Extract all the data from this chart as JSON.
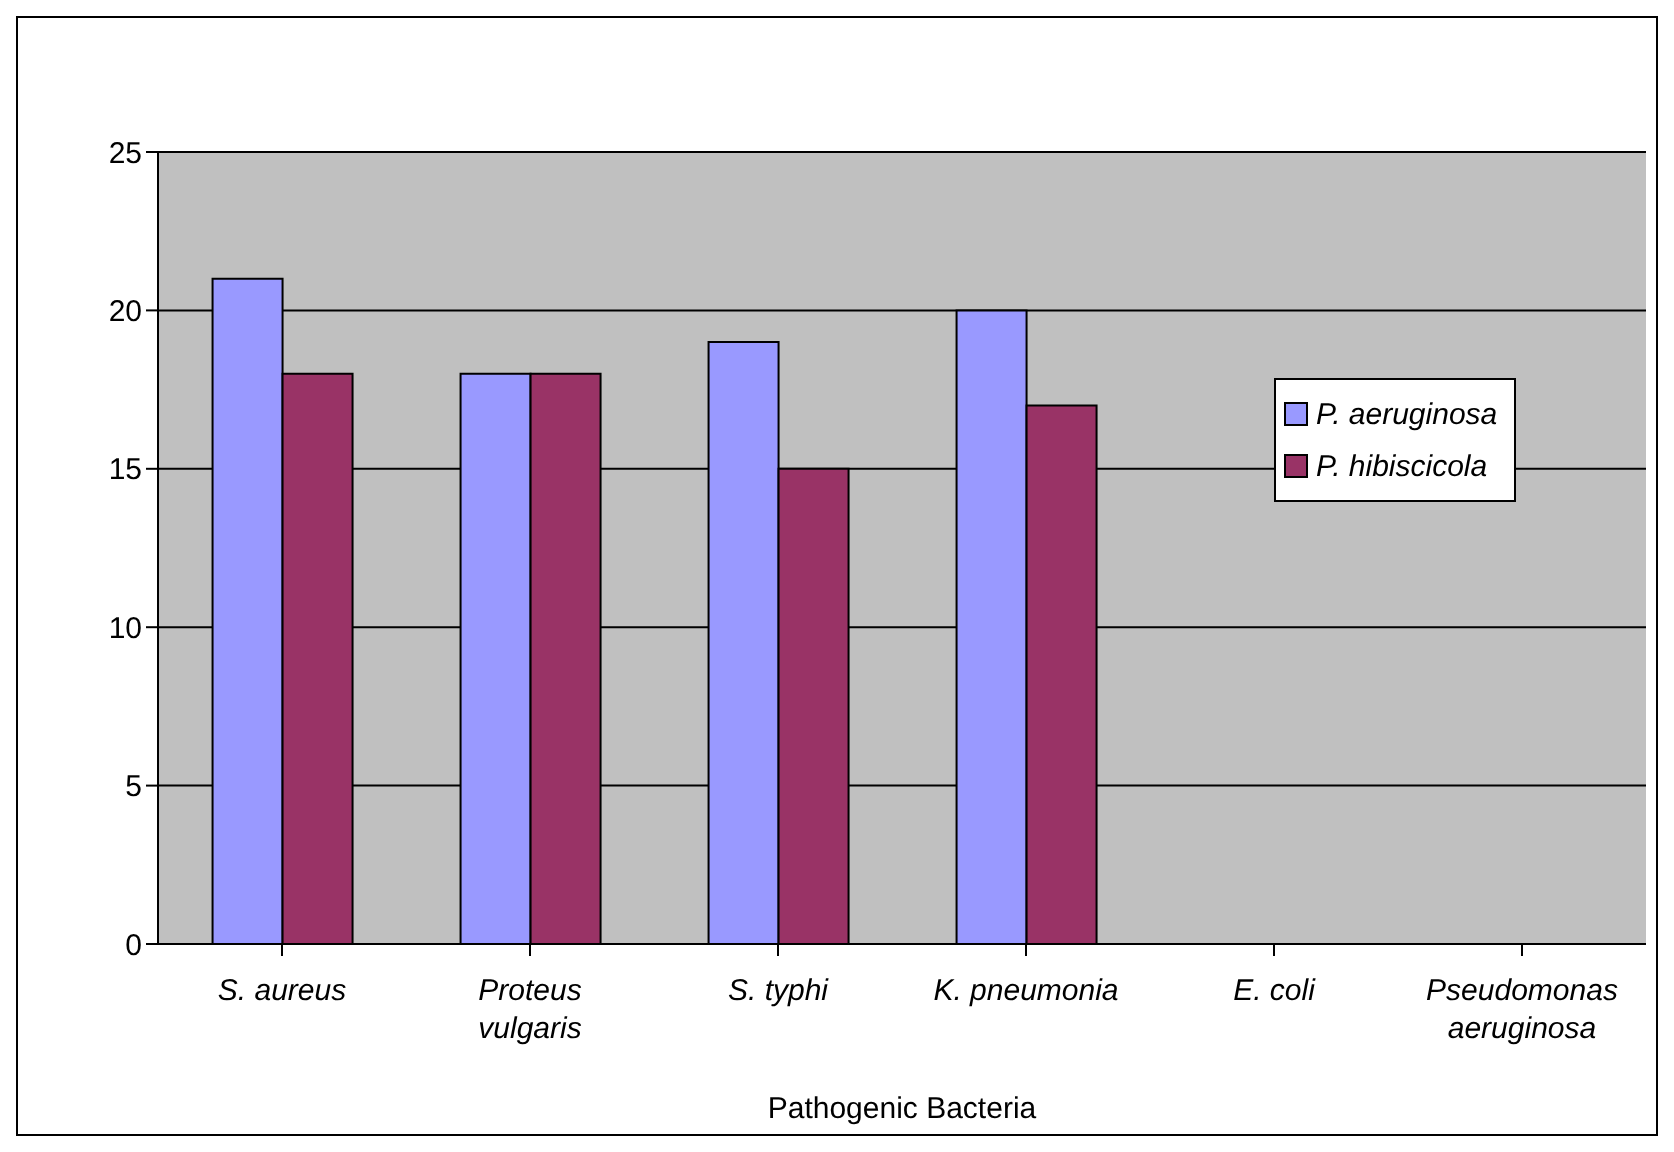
{
  "chart_data": {
    "type": "bar",
    "xlabel": "Pathogenic Bacteria",
    "categories": [
      "S. aureus",
      "Proteus vulgaris",
      "S. typhi",
      "K. pneumonia",
      "E. coli",
      "Pseudomonas aeruginosa"
    ],
    "series": [
      {
        "name": "P. aeruginosa",
        "color": "#9999ff",
        "values": [
          21,
          18,
          19,
          20,
          0,
          0
        ]
      },
      {
        "name": "P. hibiscicola",
        "color": "#993366",
        "values": [
          18,
          18,
          15,
          17,
          0,
          0
        ]
      }
    ],
    "ylim": [
      0,
      25
    ],
    "yticks": [
      0,
      5,
      10,
      15,
      20,
      25
    ],
    "grid": "y",
    "legend": "right"
  }
}
